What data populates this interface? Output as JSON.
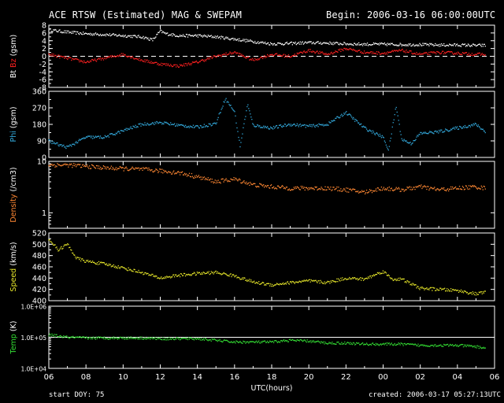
{
  "header": {
    "title": "ACE RTSW (Estimated) MAG & SWEPAM",
    "begin": "Begin: 2006-03-16 06:00:00UTC"
  },
  "footer": {
    "start_doy": "start DOY:  75",
    "created": "created: 2006-03-17 05:27:13UTC"
  },
  "colors": {
    "background": "#000000",
    "axes": "#ffffff",
    "bt": "#ffffff",
    "bz": "#ff2020",
    "phi": "#33aadd",
    "density": "#ff8833",
    "speed": "#e6e62a",
    "temp": "#33dd33"
  },
  "chart_data": [
    {
      "type": "scatter",
      "panel": "mag",
      "ylabel_parts": [
        "Bt",
        "Bz",
        "(gsm)"
      ],
      "ylim": [
        -8,
        8
      ],
      "yticks": [
        -8,
        -6,
        -4,
        -2,
        0,
        2,
        4,
        6,
        8
      ],
      "ytick_labels": [
        "-8",
        "-6",
        "-4",
        "-2",
        "0",
        "2",
        "4",
        "6",
        "8"
      ],
      "zero_line": "dashed",
      "series": [
        {
          "name": "Bt",
          "color": "#ffffff",
          "x": [
            0,
            1,
            2,
            3,
            4,
            5,
            5.6,
            6,
            6.3,
            7,
            8,
            9,
            10,
            11,
            12,
            13,
            14,
            15,
            16,
            17,
            18,
            19,
            20,
            21,
            22,
            23,
            23.5
          ],
          "values": [
            6.8,
            6.2,
            5.8,
            5.6,
            5.3,
            5.0,
            4.2,
            6.5,
            5.8,
            5.3,
            5.3,
            5.0,
            4.4,
            3.8,
            3.2,
            3.3,
            3.5,
            3.4,
            3.2,
            3.1,
            3.1,
            3.0,
            3.0,
            2.9,
            2.9,
            2.8,
            2.8
          ]
        },
        {
          "name": "Bz",
          "color": "#ff2020",
          "x": [
            0,
            1,
            2,
            3,
            4,
            5,
            6,
            7,
            8,
            9,
            10,
            11,
            12,
            13,
            14,
            15,
            16,
            17,
            18,
            19,
            20,
            21,
            22,
            23,
            23.5
          ],
          "values": [
            0.5,
            -0.5,
            -1.5,
            -0.5,
            0.5,
            -1.0,
            -2.0,
            -2.5,
            -1.5,
            0.0,
            1.0,
            -1.0,
            0.5,
            0.0,
            1.5,
            0.5,
            2.0,
            1.0,
            0.8,
            1.5,
            0.5,
            1.0,
            0.8,
            0.5,
            0.5
          ]
        }
      ]
    },
    {
      "type": "scatter",
      "panel": "phi",
      "ylabel_parts": [
        "Phi",
        "(gsm)"
      ],
      "ylim": [
        0,
        360
      ],
      "yticks": [
        0,
        90,
        180,
        270,
        360
      ],
      "ytick_labels": [
        "0",
        "90",
        "180",
        "270",
        "360"
      ],
      "series": [
        {
          "name": "Phi",
          "color": "#33aadd",
          "x": [
            0,
            0.5,
            1,
            2,
            3,
            4,
            5,
            6,
            7,
            8,
            9,
            9.5,
            10,
            10.3,
            10.7,
            11,
            12,
            13,
            14,
            15,
            16,
            17,
            18,
            18.3,
            18.7,
            19,
            19.5,
            20,
            21,
            22,
            23,
            23.5
          ],
          "values": [
            90,
            70,
            55,
            110,
            110,
            145,
            180,
            190,
            175,
            165,
            185,
            320,
            250,
            60,
            290,
            175,
            160,
            180,
            170,
            180,
            245,
            160,
            110,
            40,
            280,
            100,
            75,
            130,
            140,
            160,
            180,
            140
          ]
        }
      ]
    },
    {
      "type": "scatter",
      "panel": "density",
      "ylabel_parts": [
        "Density",
        "(/cm3)"
      ],
      "yscale": "log",
      "ylim": [
        0.5,
        10
      ],
      "yticks": [
        1,
        10
      ],
      "ytick_labels": [
        "1",
        "10"
      ],
      "series": [
        {
          "name": "Density",
          "color": "#ff8833",
          "x": [
            0,
            1,
            2,
            3,
            4,
            5,
            6,
            7,
            8,
            9,
            10,
            11,
            12,
            13,
            14,
            15,
            16,
            17,
            18,
            19,
            20,
            21,
            22,
            23,
            23.5
          ],
          "values": [
            8.5,
            8.5,
            8.0,
            7.5,
            7.2,
            7.0,
            6.5,
            6.0,
            5.0,
            4.0,
            4.5,
            3.5,
            3.2,
            3.0,
            3.0,
            3.0,
            2.8,
            2.5,
            3.0,
            2.8,
            3.2,
            2.8,
            3.0,
            3.2,
            3.0
          ]
        }
      ]
    },
    {
      "type": "scatter",
      "panel": "speed",
      "ylabel_parts": [
        "Speed",
        "(km/s)"
      ],
      "ylim": [
        400,
        520
      ],
      "yticks": [
        400,
        420,
        440,
        460,
        480,
        500,
        520
      ],
      "ytick_labels": [
        "400",
        "420",
        "440",
        "460",
        "480",
        "500",
        "520"
      ],
      "series": [
        {
          "name": "Speed",
          "color": "#e6e62a",
          "x": [
            0,
            0.5,
            1,
            1.5,
            2,
            3,
            4,
            5,
            6,
            7,
            8,
            9,
            10,
            11,
            12,
            13,
            14,
            15,
            16,
            17,
            18,
            18.5,
            19,
            20,
            21,
            22,
            23,
            23.5
          ],
          "values": [
            510,
            490,
            500,
            475,
            470,
            465,
            458,
            450,
            440,
            445,
            448,
            450,
            444,
            433,
            428,
            432,
            435,
            432,
            440,
            438,
            452,
            438,
            438,
            422,
            420,
            418,
            412,
            415
          ]
        }
      ]
    },
    {
      "type": "scatter",
      "panel": "temp",
      "ylabel_parts": [
        "Temp",
        "(K)"
      ],
      "yscale": "log",
      "ylim": [
        10000,
        1000000
      ],
      "yticks": [
        10000,
        100000,
        1000000
      ],
      "ytick_labels": [
        "1.0E+04",
        "1.0E+05",
        "1.0E+06"
      ],
      "ref_line": 100000,
      "series": [
        {
          "name": "Temp",
          "color": "#33dd33",
          "x": [
            0,
            1,
            2,
            3,
            4,
            5,
            6,
            7,
            8,
            9,
            10,
            11,
            12,
            13,
            14,
            15,
            16,
            17,
            18,
            19,
            20,
            21,
            22,
            23,
            23.5
          ],
          "values": [
            120000,
            100000,
            95000,
            95000,
            95000,
            95000,
            90000,
            90000,
            90000,
            80000,
            70000,
            70000,
            70000,
            80000,
            75000,
            65000,
            65000,
            60000,
            60000,
            60000,
            55000,
            55000,
            55000,
            50000,
            45000
          ]
        }
      ]
    }
  ],
  "xaxis": {
    "label": "UTC(hours)",
    "ticks": [
      0,
      2,
      4,
      6,
      8,
      10,
      12,
      14,
      16,
      18,
      20,
      22,
      24
    ],
    "tick_labels": [
      "06",
      "08",
      "10",
      "12",
      "14",
      "16",
      "18",
      "20",
      "22",
      "00",
      "02",
      "04",
      "06"
    ]
  }
}
